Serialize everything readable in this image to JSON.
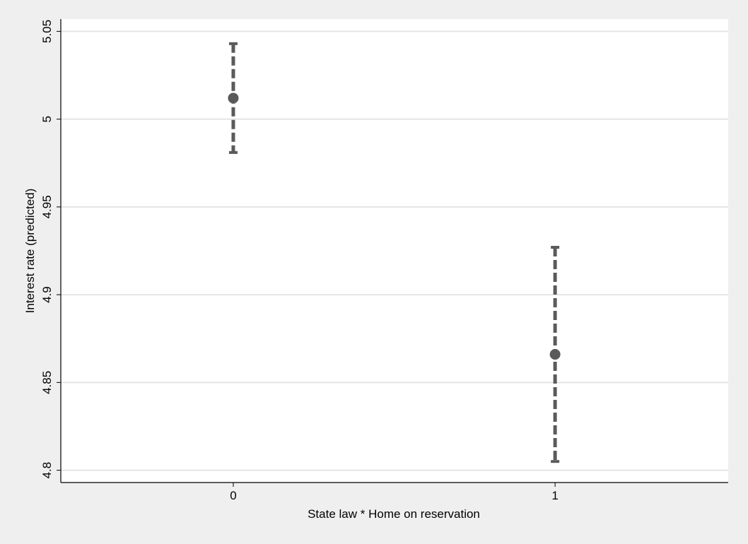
{
  "chart_data": {
    "type": "errorbar",
    "x_label": "State law * Home on reservation",
    "y_label": "Interest rate (predicted)",
    "x": [
      0,
      1
    ],
    "values": [
      5.012,
      4.866
    ],
    "ci_lower": [
      4.981,
      4.805
    ],
    "ci_upper": [
      5.043,
      4.927
    ],
    "color": "#5a5a5a",
    "xlim": [
      -0.536,
      1.538
    ],
    "xticks": [
      0,
      1
    ],
    "ylim": [
      4.793,
      5.057
    ],
    "yticks": [
      4.8,
      4.85,
      4.9,
      4.95,
      5,
      5.05
    ],
    "grid": true
  }
}
